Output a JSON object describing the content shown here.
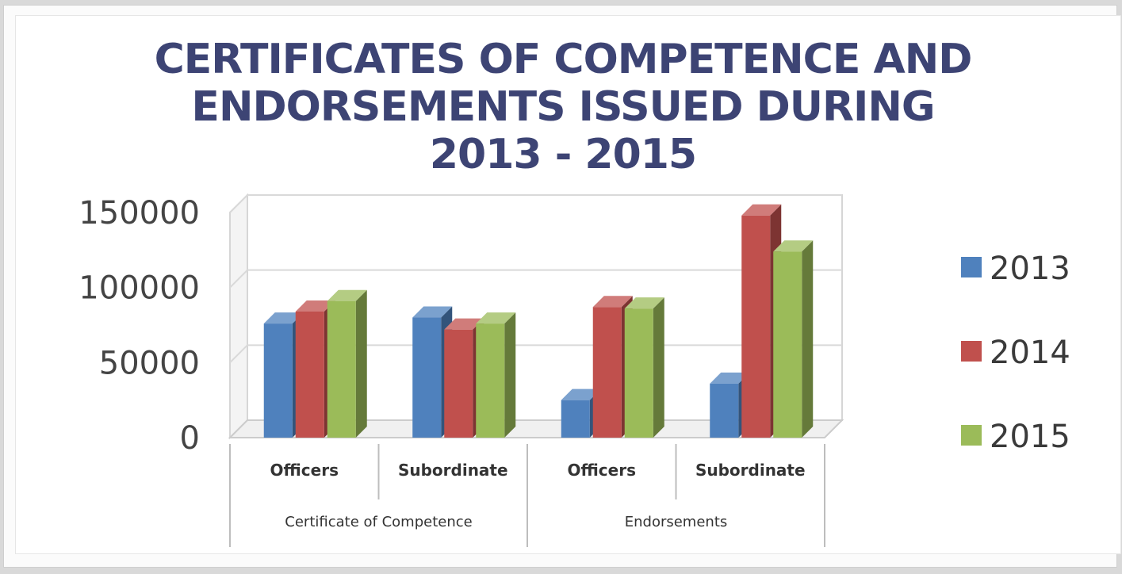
{
  "chart_data": {
    "type": "bar",
    "title_lines": [
      "CERTIFICATES OF COMPETENCE AND",
      "ENDORSEMENTS ISSUED DURING",
      "2013 - 2015"
    ],
    "categories": [
      "Officers",
      "Subordinate",
      "Officers",
      "Subordinate"
    ],
    "category_groups": [
      {
        "label": "Certificate of Competence",
        "span": 2
      },
      {
        "label": "Endorsements",
        "span": 2
      }
    ],
    "series": [
      {
        "name": "2013",
        "color": "#4f81bd",
        "values": [
          76000,
          80000,
          25000,
          36000
        ]
      },
      {
        "name": "2014",
        "color": "#c0504d",
        "values": [
          84000,
          72000,
          87000,
          148000
        ]
      },
      {
        "name": "2015",
        "color": "#9bbb59",
        "values": [
          91000,
          76000,
          86000,
          124000
        ]
      }
    ],
    "ylim": [
      0,
      150000
    ],
    "yticks": [
      "0",
      "50000",
      "100000",
      "150000"
    ],
    "grid": true,
    "legend_position": "right",
    "style": "3d-clustered-column"
  }
}
